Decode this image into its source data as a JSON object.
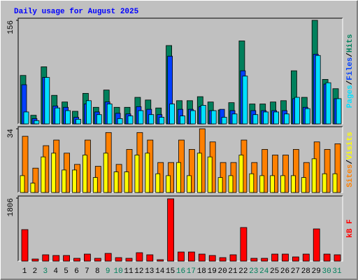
{
  "title": "Daily usage for August 2025",
  "legend_separator": "/",
  "chart_data": [
    {
      "type": "bar",
      "ylim": [
        0,
        156
      ],
      "yticks": [
        156
      ],
      "series": [
        {
          "name": "Hits",
          "color": "#00805c",
          "values": [
            73,
            13,
            86,
            43,
            33,
            19,
            46,
            25,
            51,
            25,
            25,
            40,
            36,
            24,
            118,
            35,
            35,
            41,
            33,
            21,
            32,
            125,
            30,
            30,
            33,
            35,
            80,
            40,
            156,
            67,
            53
          ]
        },
        {
          "name": "Files",
          "color": "#0040ff",
          "values": [
            59,
            8,
            70,
            27,
            25,
            10,
            30,
            18,
            33,
            16,
            15,
            26,
            22,
            14,
            102,
            22,
            22,
            26,
            20,
            22,
            20,
            80,
            20,
            20,
            20,
            20,
            38,
            25,
            105,
            60,
            38
          ]
        },
        {
          "name": "Pages",
          "color": "#00e0ff",
          "values": [
            18,
            5,
            70,
            24,
            20,
            7,
            35,
            14,
            30,
            8,
            12,
            20,
            14,
            10,
            30,
            12,
            20,
            28,
            20,
            10,
            15,
            72,
            14,
            18,
            18,
            15,
            40,
            23,
            103,
            62,
            38
          ]
        }
      ]
    },
    {
      "type": "bar",
      "ylim": [
        0,
        34
      ],
      "yticks": [
        34
      ],
      "series": [
        {
          "name": "Visits",
          "color": "#ffff00",
          "values": [
            9,
            5,
            19,
            21,
            12,
            12,
            20,
            8,
            21,
            11,
            11,
            20,
            21,
            10,
            9,
            16,
            9,
            21,
            19,
            8,
            9,
            20,
            10,
            9,
            9,
            9,
            9,
            8,
            18,
            10,
            10
          ]
        },
        {
          "name": "Sites",
          "color": "#ff8000",
          "values": [
            30,
            13,
            25,
            28,
            21,
            15,
            28,
            14,
            32,
            15,
            23,
            32,
            28,
            16,
            16,
            28,
            23,
            34,
            27,
            16,
            16,
            28,
            16,
            23,
            20,
            20,
            23,
            16,
            27,
            23,
            26
          ]
        }
      ]
    },
    {
      "type": "bar",
      "ylim": [
        0,
        1806
      ],
      "yticks": [
        1806
      ],
      "categories": [
        "1",
        "2",
        "3",
        "4",
        "5",
        "6",
        "7",
        "8",
        "9",
        "10",
        "11",
        "12",
        "13",
        "14",
        "15",
        "16",
        "17",
        "18",
        "19",
        "20",
        "21",
        "22",
        "23",
        "24",
        "25",
        "26",
        "27",
        "28",
        "29",
        "30",
        "31"
      ],
      "category_colors": [
        "#000",
        "#000",
        "#00805c",
        "#000",
        "#000",
        "#000",
        "#000",
        "#000",
        "#00805c",
        "#00805c",
        "#000",
        "#000",
        "#000",
        "#000",
        "#000",
        "#00805c",
        "#00805c",
        "#000",
        "#000",
        "#000",
        "#000",
        "#000",
        "#00805c",
        "#00805c",
        "#000",
        "#000",
        "#000",
        "#000",
        "#000",
        "#00805c",
        "#00805c"
      ],
      "series": [
        {
          "name": "kB F",
          "color": "#ff0000",
          "values": [
            903,
            60,
            181,
            161,
            161,
            80,
            201,
            80,
            221,
            100,
            80,
            241,
            181,
            40,
            1786,
            261,
            261,
            201,
            161,
            100,
            181,
            963,
            80,
            80,
            201,
            201,
            120,
            201,
            923,
            201,
            181
          ]
        }
      ]
    }
  ]
}
